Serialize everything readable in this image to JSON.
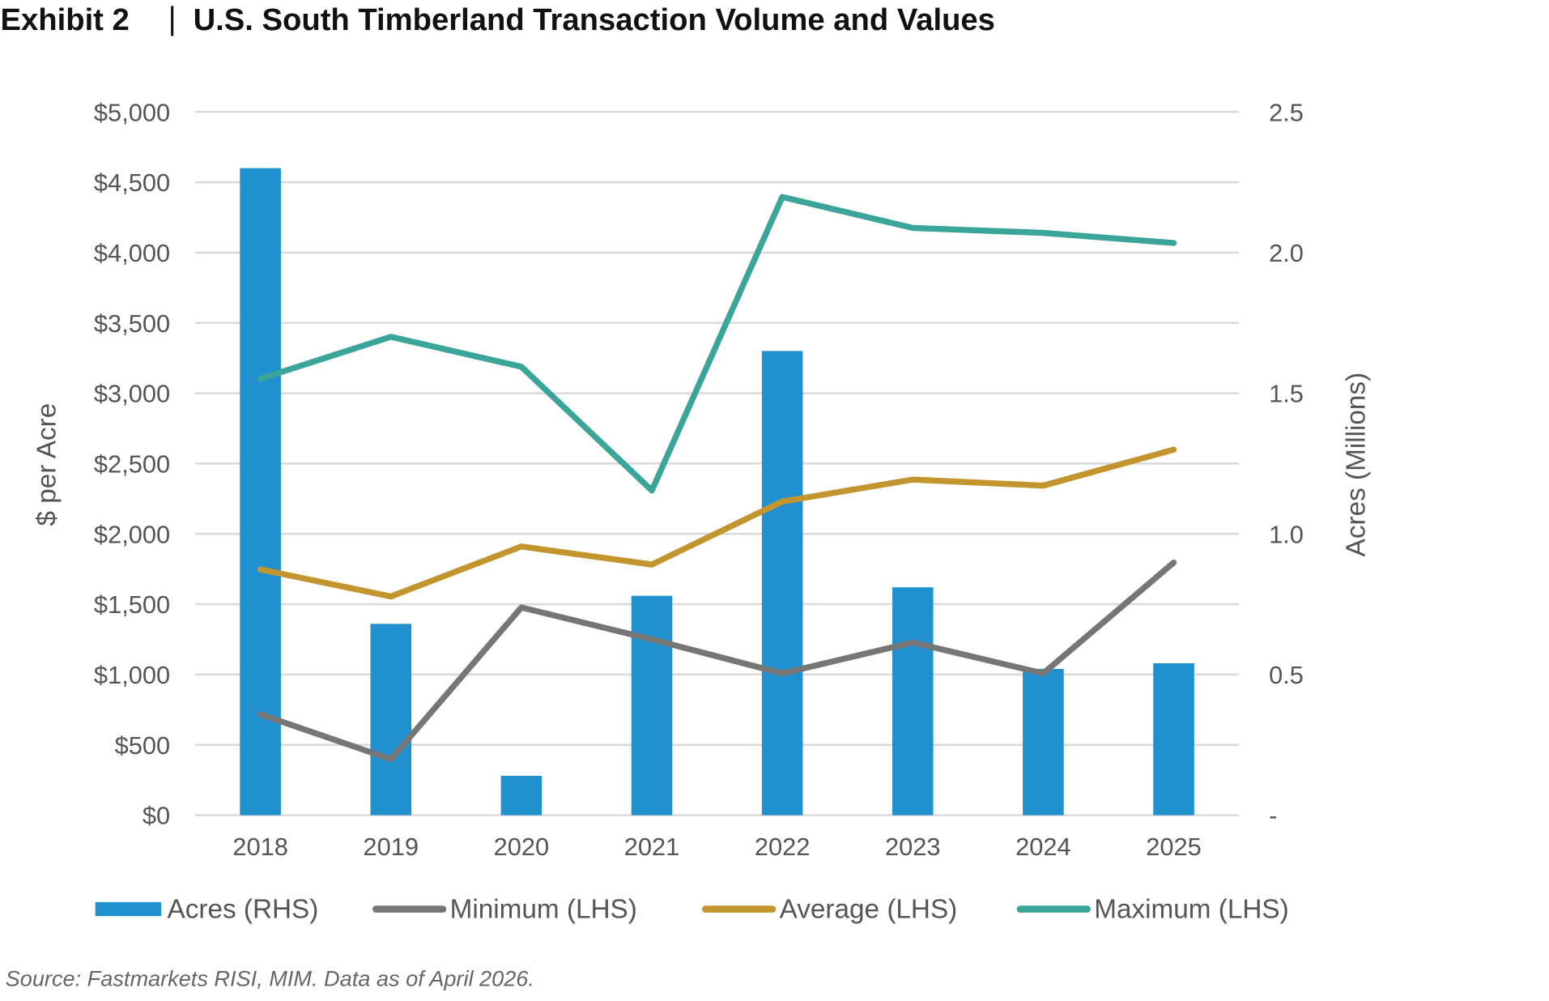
{
  "chart_data": {
    "type": "bar+line",
    "title": "Exhibit 2  |  U.S. South Timberland Transaction Volume and Values",
    "title_left": "Exhibit 2",
    "title_right": "U.S. South Timberland Transaction Volume and Values",
    "categories": [
      "2018",
      "2019",
      "2020",
      "2021",
      "2022",
      "2023",
      "2024",
      "2025"
    ],
    "ylabel": "$ per Acre",
    "y2label": "Acres (Millions)",
    "ylim": [
      0,
      5000
    ],
    "y2lim": [
      0,
      2.5
    ],
    "yticks": [
      0,
      500,
      1000,
      1500,
      2000,
      2500,
      3000,
      3500,
      4000,
      4500,
      5000
    ],
    "ytick_labels": [
      "$0",
      "$500",
      "$1,000",
      "$1,500",
      "$2,000",
      "$2,500",
      "$3,000",
      "$3,500",
      "$4,000",
      "$4,500",
      "$5,000"
    ],
    "y2ticks": [
      0,
      0.5,
      1.0,
      1.5,
      2.0,
      2.5
    ],
    "y2tick_labels": [
      "-",
      "0.5",
      "1.0",
      "1.5",
      "2.0",
      "2.5"
    ],
    "grid": true,
    "legend_position": "bottom",
    "series": [
      {
        "name": "Acres (RHS)",
        "type": "bar",
        "axis": "right",
        "color": "#2190cf",
        "values": [
          2.3,
          0.68,
          0.14,
          0.78,
          1.65,
          0.81,
          0.52,
          0.54
        ]
      },
      {
        "name": "Minimum (LHS)",
        "type": "line",
        "axis": "left",
        "color": "#767676",
        "values": [
          717,
          398,
          1477,
          1250,
          1008,
          1228,
          1008,
          1796
        ]
      },
      {
        "name": "Average (LHS)",
        "type": "line",
        "axis": "left",
        "color": "#c3952e",
        "values": [
          1747,
          1555,
          1910,
          1782,
          2230,
          2386,
          2343,
          2599
        ]
      },
      {
        "name": "Maximum (LHS)",
        "type": "line",
        "axis": "left",
        "color": "#3aa598",
        "values": [
          3103,
          3401,
          3188,
          2308,
          4395,
          4175,
          4140,
          4068
        ]
      }
    ],
    "source": "Source: Fastmarkets RISI, MIM. Data as of April 2026."
  }
}
